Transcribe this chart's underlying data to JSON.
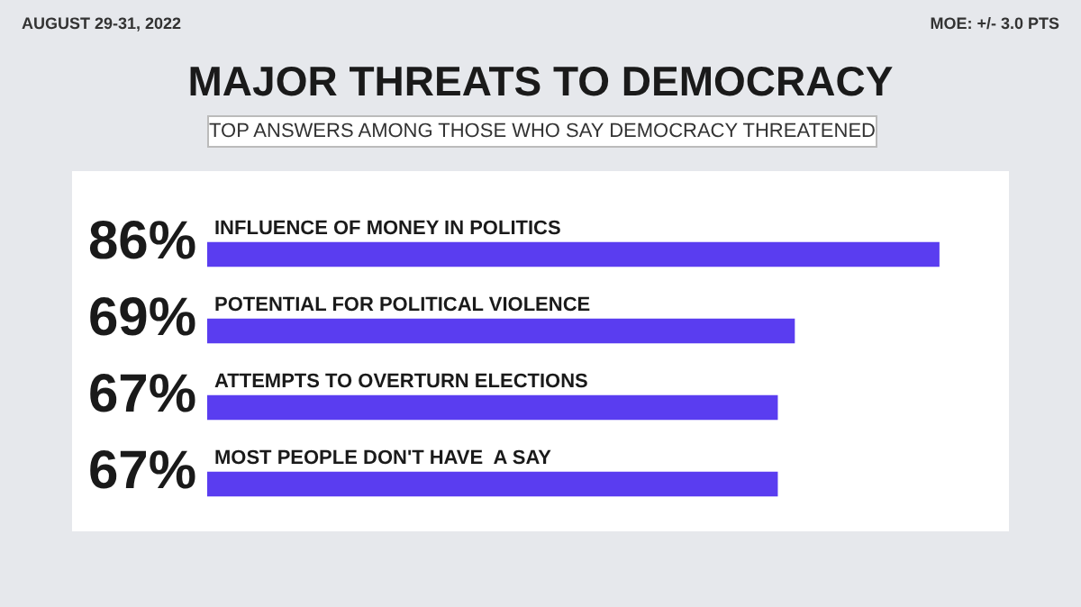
{
  "chart_data": {
    "type": "bar",
    "orientation": "horizontal",
    "title": "MAJOR THREATS TO DEMOCRACY",
    "subtitle": "TOP ANSWERS AMONG THOSE WHO SAY DEMOCRACY THREATENED",
    "annotations": [
      "AUGUST 29-31, 2022",
      "MOE: +/- 3.0 PTS"
    ],
    "categories": [
      "INFLUENCE OF MONEY IN POLITICS",
      "POTENTIAL FOR POLITICAL VIOLENCE",
      "ATTEMPTS TO OVERTURN ELECTIONS",
      "MOST PEOPLE DON'T HAVE  A SAY"
    ],
    "values": [
      86,
      69,
      67,
      67
    ],
    "color": "#5a3df0",
    "value_labels": [
      "86%",
      "69%",
      "67%",
      "67%"
    ]
  }
}
